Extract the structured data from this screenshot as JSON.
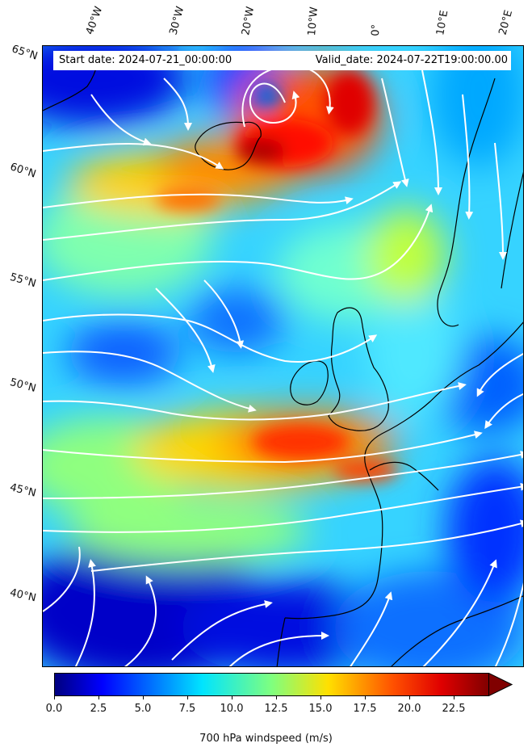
{
  "header": {
    "start_date": "Start date: 2024-07-21_00:00:00",
    "valid_date": "Valid_date: 2024-07-22T19:00:00.00"
  },
  "lon_labels": [
    "40°W",
    "30°W",
    "20°W",
    "10°W",
    "0°",
    "10°E",
    "20°E"
  ],
  "lat_labels": [
    "65°N",
    "60°N",
    "55°N",
    "50°N",
    "45°N",
    "40°N"
  ],
  "colorbar": {
    "label": "700 hPa windspeed (m/s)",
    "ticks": [
      "0.0",
      "2.5",
      "5.0",
      "7.5",
      "10.0",
      "12.5",
      "15.0",
      "17.5",
      "20.0",
      "22.5"
    ],
    "min": 0,
    "max": 25,
    "extend": "max",
    "colormap": "jet",
    "colors": [
      "#00007f",
      "#0000ff",
      "#007fff",
      "#00ffff",
      "#7fff7f",
      "#ffff00",
      "#ff7f00",
      "#ff0000",
      "#7f0000"
    ]
  },
  "map": {
    "projection": "conic",
    "region": "North Atlantic and Western Europe",
    "overlay": "streamlines",
    "streamline_color": "#ffffff",
    "coastline_color": "#000000"
  }
}
